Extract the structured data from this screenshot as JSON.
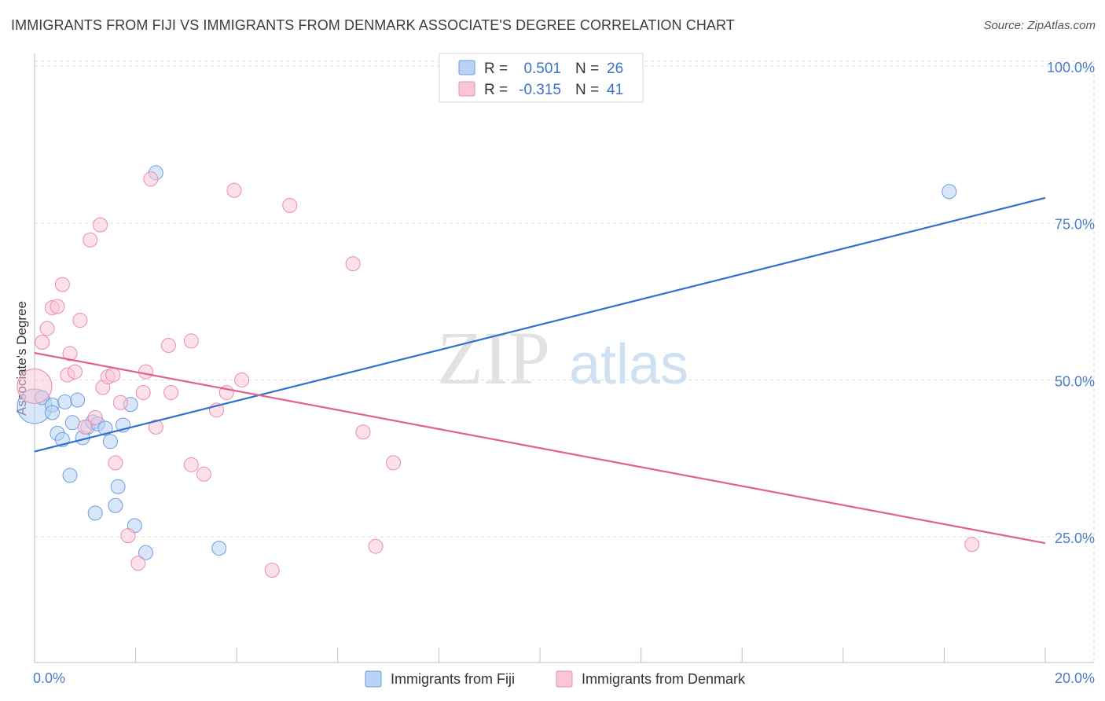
{
  "title": "IMMIGRANTS FROM FIJI VS IMMIGRANTS FROM DENMARK ASSOCIATE'S DEGREE CORRELATION CHART",
  "source": "Source: ZipAtlas.com",
  "watermark": {
    "zip": "ZIP",
    "atlas": "atlas"
  },
  "chart_data": {
    "type": "scatter",
    "ylabel": "Associate's Degree",
    "xlim": [
      0,
      20
    ],
    "ylim": [
      5,
      102
    ],
    "x_ticks": [
      {
        "value": 0,
        "label": "0.0%"
      },
      {
        "value": 20,
        "label": "20.0%"
      }
    ],
    "y_ticks": [
      {
        "value": 25,
        "label": "25.0%"
      },
      {
        "value": 50,
        "label": "50.0%"
      },
      {
        "value": 75,
        "label": "75.0%"
      },
      {
        "value": 100,
        "label": "100.0%"
      }
    ],
    "x_minor_ticks": [
      0,
      2,
      4,
      6,
      8,
      10,
      12,
      14,
      16,
      18,
      20
    ],
    "grid": true,
    "legend_position": "top-center",
    "series": [
      {
        "name": "Immigrants from Fiji",
        "r_label": "R =",
        "r_value": "0.501",
        "n_label": "N =",
        "n_value": "26",
        "color": "#6a9ee0",
        "fill": "#b9d2f4",
        "line_color": "#2f6fce",
        "trend": {
          "x0": 0,
          "y0": 38.6,
          "x1": 20,
          "y1": 79.0
        },
        "points": [
          [
            0.0,
            45.8,
            22
          ],
          [
            0.15,
            47.2,
            9
          ],
          [
            0.35,
            46.0,
            9
          ],
          [
            0.35,
            44.8,
            9
          ],
          [
            0.45,
            41.5,
            9
          ],
          [
            0.55,
            40.5,
            9
          ],
          [
            0.6,
            46.5,
            9
          ],
          [
            0.7,
            34.8,
            9
          ],
          [
            0.75,
            43.2,
            9
          ],
          [
            0.85,
            46.8,
            9
          ],
          [
            0.95,
            40.8,
            9
          ],
          [
            1.05,
            42.5,
            9
          ],
          [
            1.15,
            43.3,
            9
          ],
          [
            1.25,
            43.0,
            9
          ],
          [
            1.2,
            28.8,
            9
          ],
          [
            1.4,
            42.3,
            9
          ],
          [
            1.5,
            40.2,
            9
          ],
          [
            1.6,
            30.0,
            9
          ],
          [
            1.65,
            33.0,
            9
          ],
          [
            1.75,
            42.8,
            9
          ],
          [
            1.9,
            46.1,
            9
          ],
          [
            1.98,
            26.8,
            9
          ],
          [
            2.2,
            22.5,
            9
          ],
          [
            2.4,
            83.0,
            9
          ],
          [
            3.65,
            23.2,
            9
          ],
          [
            18.1,
            80.0,
            9
          ]
        ]
      },
      {
        "name": "Immigrants from Denmark",
        "r_label": "R =",
        "r_value": "-0.315",
        "n_label": "N =",
        "n_value": "41",
        "color": "#e98ab0",
        "fill": "#f9c6d8",
        "line_color": "#e0608f",
        "trend": {
          "x0": 0,
          "y0": 54.3,
          "x1": 20,
          "y1": 24.0
        },
        "points": [
          [
            0.0,
            49.0,
            22
          ],
          [
            0.15,
            56.0,
            9
          ],
          [
            0.25,
            58.2,
            9
          ],
          [
            0.35,
            61.5,
            9
          ],
          [
            0.45,
            61.7,
            9
          ],
          [
            0.55,
            65.2,
            9
          ],
          [
            0.65,
            50.8,
            9
          ],
          [
            0.7,
            54.2,
            9
          ],
          [
            0.8,
            51.3,
            9
          ],
          [
            0.9,
            59.5,
            9
          ],
          [
            1.0,
            42.5,
            9
          ],
          [
            1.1,
            72.3,
            9
          ],
          [
            1.2,
            44.0,
            9
          ],
          [
            1.3,
            74.7,
            9
          ],
          [
            1.35,
            48.8,
            9
          ],
          [
            1.45,
            50.5,
            9
          ],
          [
            1.55,
            50.8,
            9
          ],
          [
            1.6,
            36.8,
            9
          ],
          [
            1.7,
            46.4,
            9
          ],
          [
            1.85,
            25.2,
            9
          ],
          [
            2.05,
            20.8,
            9
          ],
          [
            2.15,
            48.0,
            9
          ],
          [
            2.2,
            51.3,
            9
          ],
          [
            2.3,
            82.0,
            9
          ],
          [
            2.4,
            42.5,
            9
          ],
          [
            2.65,
            55.5,
            9
          ],
          [
            2.7,
            48.0,
            9
          ],
          [
            3.1,
            36.5,
            9
          ],
          [
            3.1,
            56.2,
            9
          ],
          [
            3.35,
            35.0,
            9
          ],
          [
            3.6,
            45.2,
            9
          ],
          [
            3.8,
            48.0,
            9
          ],
          [
            3.95,
            80.2,
            9
          ],
          [
            4.1,
            50.0,
            9
          ],
          [
            4.7,
            19.7,
            9
          ],
          [
            5.05,
            77.8,
            9
          ],
          [
            6.3,
            68.5,
            9
          ],
          [
            6.5,
            41.7,
            9
          ],
          [
            6.75,
            23.5,
            9
          ],
          [
            7.1,
            36.8,
            9
          ],
          [
            18.55,
            23.8,
            9
          ]
        ]
      }
    ]
  }
}
